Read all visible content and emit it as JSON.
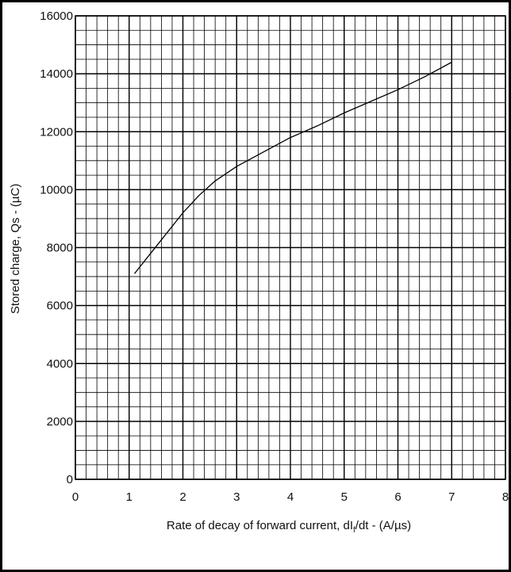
{
  "chart_data": {
    "type": "line",
    "title": "",
    "xlabel": "Rate of decay of forward current, dI",
    "xlabel_sub": "f",
    "xlabel_tail": "/dt - (A/µs)",
    "ylabel": "Stored charge, Qs - (µC)",
    "xlim": [
      0,
      8
    ],
    "ylim": [
      0,
      16000
    ],
    "x_ticks": [
      0,
      1,
      2,
      3,
      4,
      5,
      6,
      7,
      8
    ],
    "y_ticks": [
      0,
      2000,
      4000,
      6000,
      8000,
      10000,
      12000,
      14000,
      16000
    ],
    "x_tick_labels": [
      "0",
      "1",
      "2",
      "3",
      "4",
      "5",
      "6",
      "7",
      "8"
    ],
    "y_tick_labels": [
      "0",
      "2000",
      "4000",
      "6000",
      "8000",
      "10000",
      "12000",
      "14000",
      "16000"
    ],
    "grid": true,
    "series": [
      {
        "x": [
          1.1,
          1.4,
          1.7,
          2.0,
          2.3,
          2.6,
          3.0,
          3.5,
          4.0,
          4.5,
          5.0,
          5.5,
          6.0,
          6.5,
          7.0
        ],
        "y": [
          7100,
          7800,
          8500,
          9200,
          9800,
          10300,
          10800,
          11300,
          11800,
          12200,
          12650,
          13050,
          13450,
          13900,
          14400
        ],
        "color": "#000000"
      }
    ]
  }
}
